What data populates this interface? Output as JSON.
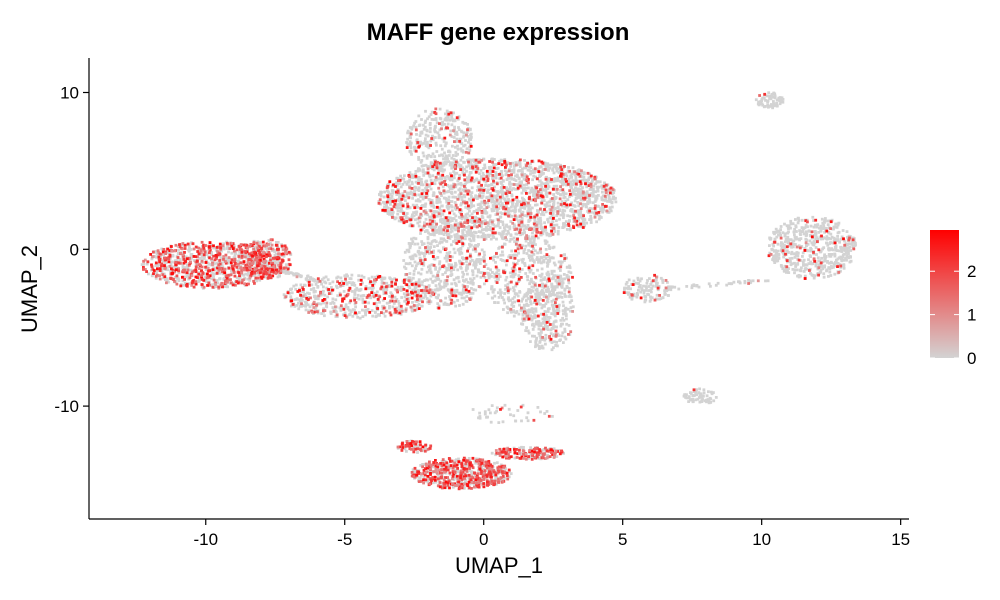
{
  "chart_data": {
    "type": "scatter",
    "title": "MAFF gene expression",
    "xlabel": "UMAP_1",
    "ylabel": "UMAP_2",
    "xlim": [
      -14.2,
      15.3
    ],
    "ylim": [
      -17.2,
      12.2
    ],
    "x_ticks": [
      -10,
      -5,
      0,
      5,
      10,
      15
    ],
    "y_ticks": [
      -10,
      0,
      10
    ],
    "grid": false,
    "legend": {
      "position": "right",
      "type": "colorbar",
      "ticks": [
        0,
        1,
        2
      ],
      "min": 0,
      "max": 2.95,
      "low_color": "#d3d3d3",
      "high_color": "#ff0000"
    },
    "point_color_low": "#d3d3d3",
    "point_color_high": "#ff0000",
    "clusters": [
      {
        "cx": 0.5,
        "cy": 3.2,
        "rx": 4.3,
        "ry": 2.6,
        "n": 2200,
        "expr": 0.18
      },
      {
        "cx": -1.6,
        "cy": 7.0,
        "rx": 1.2,
        "ry": 2.0,
        "n": 300,
        "expr": 0.12
      },
      {
        "cx": -1.4,
        "cy": -1.0,
        "rx": 1.5,
        "ry": 2.8,
        "n": 500,
        "expr": 0.12
      },
      {
        "cx": 1.6,
        "cy": -1.8,
        "rx": 1.6,
        "ry": 2.6,
        "n": 450,
        "expr": 0.1
      },
      {
        "cx": 2.3,
        "cy": -4.0,
        "rx": 1.0,
        "ry": 2.5,
        "n": 300,
        "expr": 0.12
      },
      {
        "cx": -4.5,
        "cy": -3.0,
        "rx": 2.7,
        "ry": 1.4,
        "n": 550,
        "expr": 0.25
      },
      {
        "cx": -9.8,
        "cy": -1.0,
        "rx": 2.5,
        "ry": 1.5,
        "n": 900,
        "expr": 0.45
      },
      {
        "cx": -7.8,
        "cy": -0.6,
        "rx": 0.9,
        "ry": 1.3,
        "n": 250,
        "expr": 0.55
      },
      {
        "cx": 11.8,
        "cy": 0.1,
        "rx": 1.6,
        "ry": 2.0,
        "n": 550,
        "expr": 0.07
      },
      {
        "cx": 10.3,
        "cy": 9.5,
        "rx": 0.5,
        "ry": 0.5,
        "n": 60,
        "expr": 0.02
      },
      {
        "cx": 5.9,
        "cy": -2.5,
        "rx": 0.9,
        "ry": 0.9,
        "n": 120,
        "expr": 0.08
      },
      {
        "cx": 7.8,
        "cy": -9.4,
        "rx": 0.6,
        "ry": 0.5,
        "n": 60,
        "expr": 0.02
      },
      {
        "cx": -0.8,
        "cy": -14.3,
        "rx": 1.8,
        "ry": 1.0,
        "n": 600,
        "expr": 0.55
      },
      {
        "cx": -2.5,
        "cy": -12.6,
        "rx": 0.6,
        "ry": 0.4,
        "n": 80,
        "expr": 0.6
      },
      {
        "cx": 1.6,
        "cy": -13.0,
        "rx": 1.3,
        "ry": 0.4,
        "n": 180,
        "expr": 0.6
      },
      {
        "cx": 1.0,
        "cy": -10.5,
        "rx": 1.6,
        "ry": 0.6,
        "n": 40,
        "expr": 0.2
      }
    ],
    "bridge_segments": [
      {
        "x0": 6.5,
        "y0": -2.5,
        "x1": 10.2,
        "y1": -2.0,
        "n": 40
      },
      {
        "x0": -8.0,
        "y0": -1.0,
        "x1": -6.0,
        "y1": -2.0,
        "n": 60
      }
    ]
  }
}
